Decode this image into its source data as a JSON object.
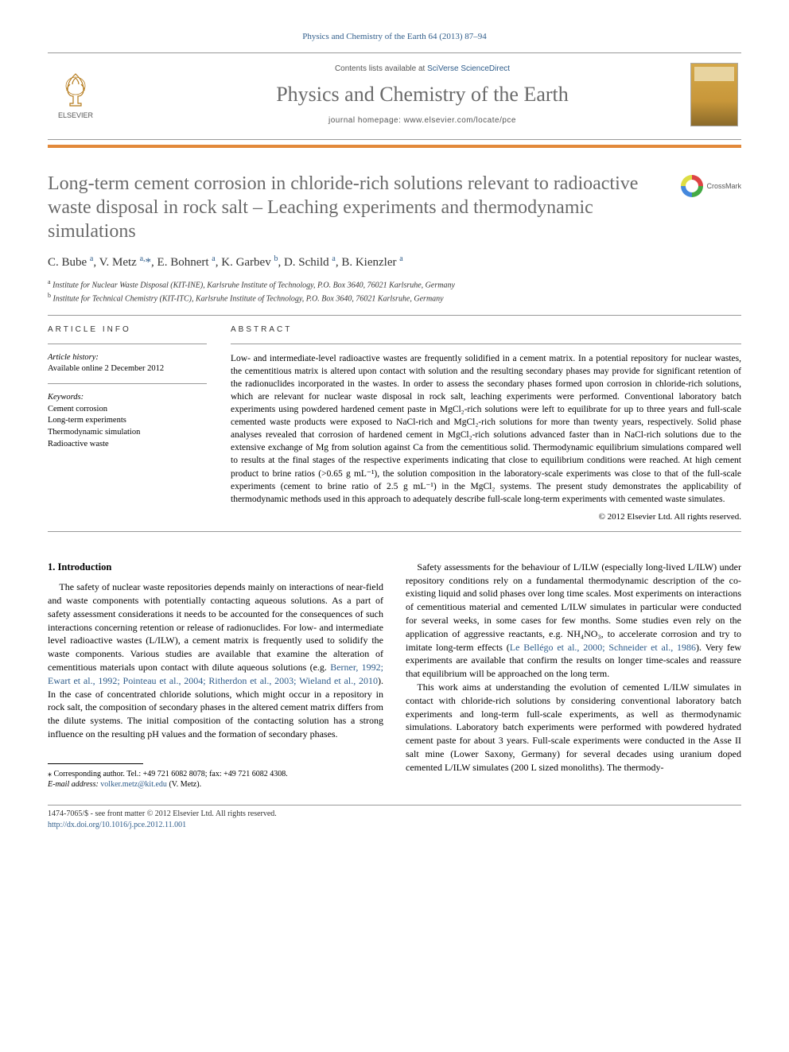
{
  "header": {
    "citation": "Physics and Chemistry of the Earth 64 (2013) 87–94",
    "contents_prefix": "Contents lists available at ",
    "contents_link": "SciVerse ScienceDirect",
    "journal_title": "Physics and Chemistry of the Earth",
    "homepage_prefix": "journal homepage: ",
    "homepage_url": "www.elsevier.com/locate/pce",
    "publisher_name": "ELSEVIER",
    "crossmark_label": "CrossMark",
    "colors": {
      "orange_rule": "#e2893a",
      "link": "#2e5c8a",
      "title_gray": "#6a6a6a"
    }
  },
  "article": {
    "title": "Long-term cement corrosion in chloride-rich solutions relevant to radioactive waste disposal in rock salt – Leaching experiments and thermodynamic simulations",
    "authors_html": "C. Bube <sup>a</sup>, V. Metz <sup>a,</sup><span class='star-sup'>*</span>, E. Bohnert <sup>a</sup>, K. Garbev <sup>b</sup>, D. Schild <sup>a</sup>, B. Kienzler <sup>a</sup>",
    "affiliations": {
      "a": "Institute for Nuclear Waste Disposal (KIT-INE), Karlsruhe Institute of Technology, P.O. Box 3640, 76021 Karlsruhe, Germany",
      "b": "Institute for Technical Chemistry (KIT-ITC), Karlsruhe Institute of Technology, P.O. Box 3640, 76021 Karlsruhe, Germany"
    }
  },
  "info": {
    "section_label": "article info",
    "history_label": "Article history:",
    "history_text": "Available online 2 December 2012",
    "keywords_label": "Keywords:",
    "keywords": [
      "Cement corrosion",
      "Long-term experiments",
      "Thermodynamic simulation",
      "Radioactive waste"
    ]
  },
  "abstract": {
    "section_label": "abstract",
    "text": "Low- and intermediate-level radioactive wastes are frequently solidified in a cement matrix. In a potential repository for nuclear wastes, the cementitious matrix is altered upon contact with solution and the resulting secondary phases may provide for significant retention of the radionuclides incorporated in the wastes. In order to assess the secondary phases formed upon corrosion in chloride-rich solutions, which are relevant for nuclear waste disposal in rock salt, leaching experiments were performed. Conventional laboratory batch experiments using powdered hardened cement paste in MgCl₂-rich solutions were left to equilibrate for up to three years and full-scale cemented waste products were exposed to NaCl-rich and MgCl₂-rich solutions for more than twenty years, respectively. Solid phase analyses revealed that corrosion of hardened cement in MgCl₂-rich solutions advanced faster than in NaCl-rich solutions due to the extensive exchange of Mg from solution against Ca from the cementitious solid. Thermodynamic equilibrium simulations compared well to results at the final stages of the respective experiments indicating that close to equilibrium conditions were reached. At high cement product to brine ratios (>0.65 g mL⁻¹), the solution composition in the laboratory-scale experiments was close to that of the full-scale experiments (cement to brine ratio of 2.5 g mL⁻¹) in the MgCl₂ systems. The present study demonstrates the applicability of thermodynamic methods used in this approach to adequately describe full-scale long-term experiments with cemented waste simulates.",
    "copyright": "© 2012 Elsevier Ltd. All rights reserved."
  },
  "body": {
    "section_heading": "1. Introduction",
    "p1": "The safety of nuclear waste repositories depends mainly on interactions of near-field and waste components with potentially contacting aqueous solutions. As a part of safety assessment considerations it needs to be accounted for the consequences of such interactions concerning retention or release of radionuclides. For low- and intermediate level radioactive wastes (L/ILW), a cement matrix is frequently used to solidify the waste components. Various studies are available that examine the alteration of cementitious materials upon contact with dilute aqueous solutions (e.g. ",
    "refs1": "Berner, 1992; Ewart et al., 1992; Pointeau et al., 2004; Ritherdon et al., 2003; Wieland et al., 2010",
    "p1b": "). In the case of concentrated chloride solutions, which might occur in a repository in rock salt, the composition of secondary phases in the altered cement matrix differs from the dilute systems. The initial composition of the contacting solution has a strong influence on the resulting pH values and the formation of secondary phases.",
    "p2": "Safety assessments for the behaviour of L/ILW (especially long-lived L/ILW) under repository conditions rely on a fundamental thermodynamic description of the co-existing liquid and solid phases over long time scales. Most experiments on interactions of cementitious material and cemented L/ILW simulates in particular were conducted for several weeks, in some cases for few months. Some studies even rely on the application of aggressive reactants, e.g. NH₄NO₃, to accelerate corrosion and try to imitate long-term effects (",
    "refs2": "Le Bellégo et al., 2000; Schneider et al., 1986",
    "p2b": "). Very few experiments are available that confirm the results on longer time-scales and reassure that equilibrium will be approached on the long term.",
    "p3": "This work aims at understanding the evolution of cemented L/ILW simulates in contact with chloride-rich solutions by considering conventional laboratory batch experiments and long-term full-scale experiments, as well as thermodynamic simulations. Laboratory batch experiments were performed with powdered hydrated cement paste for about 3 years. Full-scale experiments were conducted in the Asse II salt mine (Lower Saxony, Germany) for several decades using uranium doped cemented L/ILW simulates (200 L sized monoliths). The thermody-"
  },
  "footnote": {
    "corr_label": "⁎ Corresponding author. Tel.: +49 721 6082 8078; fax: +49 721 6082 4308.",
    "email_label": "E-mail address:",
    "email": "volker.metz@kit.edu",
    "email_suffix": "(V. Metz)."
  },
  "footer": {
    "line1": "1474-7065/$ - see front matter © 2012 Elsevier Ltd. All rights reserved.",
    "doi_url": "http://dx.doi.org/10.1016/j.pce.2012.11.001"
  }
}
